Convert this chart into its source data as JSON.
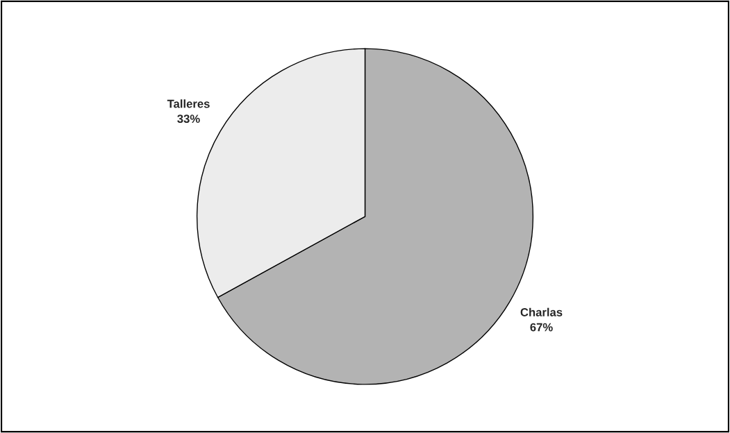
{
  "chart_data": {
    "type": "pie",
    "categories": [
      "Charlas",
      "Talleres"
    ],
    "values": [
      67,
      33
    ],
    "value_labels": [
      "67%",
      "33%"
    ],
    "colors": [
      "#b3b3b3",
      "#ececec"
    ]
  }
}
